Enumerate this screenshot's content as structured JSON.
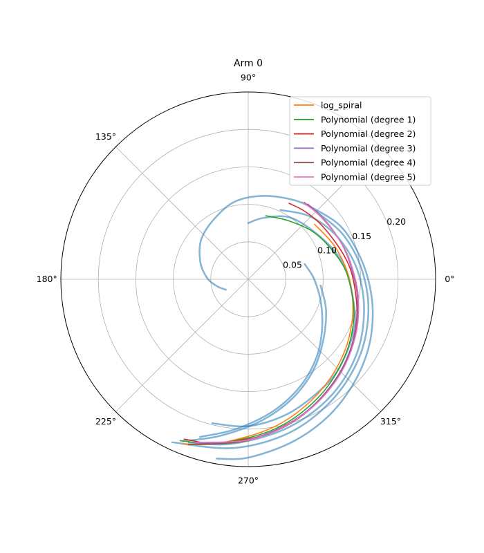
{
  "chart_data": {
    "type": "line",
    "projection": "polar",
    "title": "Arm 0",
    "angle_ticks": [
      {
        "deg": 0,
        "label": "0°"
      },
      {
        "deg": 45,
        "label": ""
      },
      {
        "deg": 90,
        "label": "90°"
      },
      {
        "deg": 135,
        "label": "135°"
      },
      {
        "deg": 180,
        "label": "180°"
      },
      {
        "deg": 225,
        "label": "225°"
      },
      {
        "deg": 270,
        "label": "270°"
      },
      {
        "deg": 315,
        "label": "315°"
      }
    ],
    "radial_ticks": [
      {
        "r": 0.05,
        "label": "0.05"
      },
      {
        "r": 0.1,
        "label": "0.10"
      },
      {
        "r": 0.15,
        "label": "0.15"
      },
      {
        "r": 0.2,
        "label": "0.20"
      }
    ],
    "rlim": [
      0,
      0.25
    ],
    "grid": true,
    "legend_position": "top-right",
    "observed": {
      "color": "#1f77b4",
      "tracks": [
        {
          "theta": [
            205,
            192,
            178,
            160,
            140,
            120,
            100,
            80,
            60,
            45,
            30,
            15,
            0,
            -15,
            -30,
            -45,
            -60,
            -75,
            -90,
            -100
          ],
          "r": [
            0.033,
            0.043,
            0.055,
            0.068,
            0.082,
            0.092,
            0.105,
            0.113,
            0.122,
            0.13,
            0.142,
            0.15,
            0.16,
            0.172,
            0.185,
            0.198,
            0.212,
            0.225,
            0.238,
            0.243
          ]
        },
        {
          "theta": [
            90,
            75,
            55,
            30,
            10,
            -8,
            -25,
            -45,
            -60,
            -75,
            -90,
            -104
          ],
          "r": [
            0.075,
            0.085,
            0.1,
            0.112,
            0.128,
            0.14,
            0.156,
            0.17,
            0.178,
            0.188,
            0.196,
            0.198
          ]
        },
        {
          "theta": [
            65,
            45,
            25,
            5,
            -15,
            -35,
            -55,
            -75,
            -95,
            -110
          ],
          "r": [
            0.102,
            0.118,
            0.132,
            0.146,
            0.16,
            0.176,
            0.191,
            0.205,
            0.22,
            0.232
          ]
        },
        {
          "theta": [
            45,
            25,
            5,
            -15,
            -35,
            -55,
            -75,
            -95,
            -115
          ],
          "r": [
            0.128,
            0.14,
            0.152,
            0.166,
            0.181,
            0.196,
            0.212,
            0.226,
            0.24
          ]
        },
        {
          "theta": [
            15,
            0,
            -18,
            -35,
            -50,
            -65,
            -80,
            -95,
            -107
          ],
          "r": [
            0.078,
            0.088,
            0.102,
            0.12,
            0.14,
            0.16,
            0.18,
            0.201,
            0.22
          ]
        },
        {
          "theta": [
            -5,
            -22,
            -40,
            -55,
            -70,
            -85,
            -100,
            -112
          ],
          "r": [
            0.097,
            0.112,
            0.13,
            0.15,
            0.17,
            0.19,
            0.212,
            0.233
          ]
        }
      ]
    },
    "series": [
      {
        "name": "log_spiral",
        "color": "#ff7f0e",
        "theta": [
          40,
          20,
          0,
          -20,
          -40,
          -60,
          -80,
          -100,
          -112
        ],
        "r": [
          0.115,
          0.124,
          0.135,
          0.148,
          0.163,
          0.18,
          0.2,
          0.222,
          0.237
        ]
      },
      {
        "name": "Polynomial (degree 1)",
        "color": "#2ca02c",
        "theta": [
          75,
          55,
          35,
          15,
          0,
          -20,
          -40,
          -60,
          -80,
          -100,
          -113
        ],
        "r": [
          0.088,
          0.095,
          0.108,
          0.122,
          0.134,
          0.15,
          0.166,
          0.184,
          0.203,
          0.222,
          0.234
        ]
      },
      {
        "name": "Polynomial (degree 2)",
        "color": "#d62728",
        "theta": [
          62,
          50,
          35,
          15,
          0,
          -20,
          -40,
          -60,
          -80,
          -100,
          -112
        ],
        "r": [
          0.115,
          0.118,
          0.122,
          0.131,
          0.14,
          0.154,
          0.17,
          0.188,
          0.206,
          0.222,
          0.23
        ]
      },
      {
        "name": "Polynomial (degree 3)",
        "color": "#9467bd",
        "theta": [
          52,
          40,
          25,
          10,
          -10,
          -30,
          -50,
          -70,
          -90,
          -108
        ],
        "r": [
          0.128,
          0.129,
          0.132,
          0.137,
          0.148,
          0.162,
          0.178,
          0.196,
          0.214,
          0.23
        ]
      },
      {
        "name": "Polynomial (degree 4)",
        "color": "#8c564b",
        "theta": [
          54,
          40,
          25,
          10,
          -10,
          -30,
          -50,
          -70,
          -90,
          -110
        ],
        "r": [
          0.127,
          0.128,
          0.132,
          0.138,
          0.149,
          0.163,
          0.179,
          0.197,
          0.215,
          0.235
        ]
      },
      {
        "name": "Polynomial (degree 5)",
        "color": "#e377c2",
        "theta": [
          55,
          42,
          28,
          12,
          -8,
          -28,
          -48,
          -68,
          -88,
          -108
        ],
        "r": [
          0.126,
          0.128,
          0.131,
          0.137,
          0.148,
          0.162,
          0.178,
          0.195,
          0.213,
          0.229
        ]
      }
    ]
  }
}
